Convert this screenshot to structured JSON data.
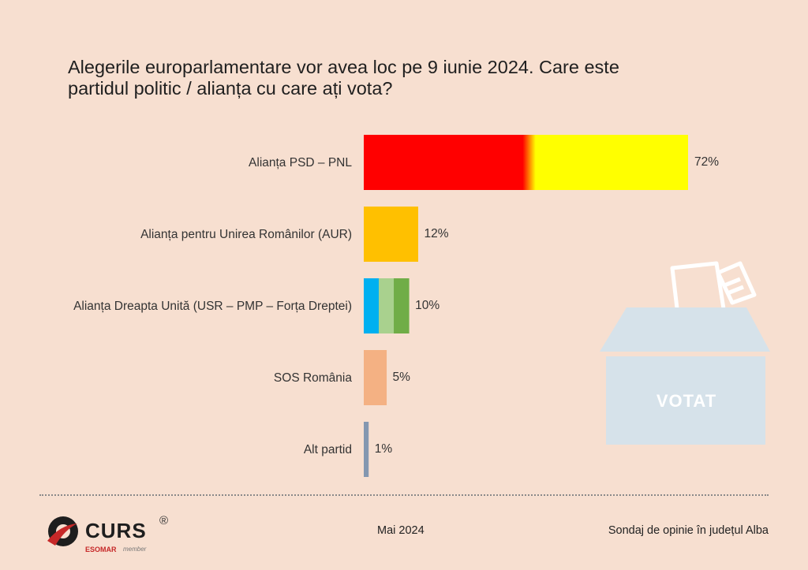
{
  "title": {
    "line1": "Alegerile europarlamentare vor avea loc pe 9 iunie 2024. Care este",
    "line2": "partidul politic / alianța cu care ați vota?"
  },
  "chart_data": {
    "type": "bar",
    "orientation": "horizontal",
    "categories": [
      "Alianța PSD – PNL",
      "Alianța pentru Unirea Românilor (AUR)",
      "Alianța Dreapta Unită (USR – PMP – Forța Dreptei)",
      "SOS România",
      "Alt partid"
    ],
    "values": [
      72,
      12,
      10,
      5,
      1
    ],
    "value_labels": [
      "72%",
      "12%",
      "10%",
      "5%",
      "1%"
    ],
    "unit": "%",
    "xlim": [
      0,
      72
    ],
    "grid": false,
    "legend": "none",
    "colors": [
      [
        "#ff0000",
        "#ffff00"
      ],
      [
        "#ffc000"
      ],
      [
        "#00b0f0",
        "#a9d18e",
        "#70ad47"
      ],
      [
        "#f4b183"
      ],
      [
        "#8497b0"
      ]
    ]
  },
  "ballot": {
    "label": "VOTAT",
    "color": "#d6e2ea"
  },
  "footer": {
    "date": "Mai 2024",
    "source": "Sondaj de opinie în județul Alba",
    "logo_text": "CURS",
    "logo_mark": "®",
    "logo_sub": "ESOMAR",
    "logo_sub2": "member"
  }
}
